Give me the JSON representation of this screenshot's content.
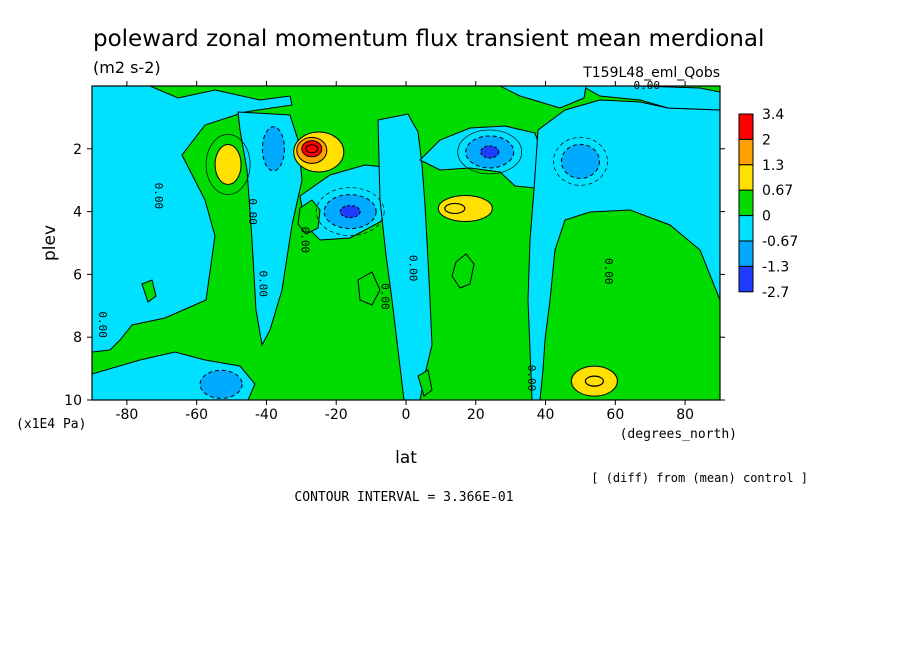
{
  "chart_data": {
    "type": "heatmap",
    "title": "poleward zonal momentum flux transient mean merdional",
    "units": "(m2 s-2)",
    "run_label": "T159L48_eml_Qobs",
    "xlabel": "lat",
    "x_units": "(degrees_north)",
    "ylabel": "plev",
    "y_units": "(x1E4 Pa)",
    "xlim": [
      -90,
      90
    ],
    "ylim": [
      0,
      10
    ],
    "y_reversed": true,
    "x_ticks": [
      -80,
      -60,
      -40,
      -20,
      0,
      20,
      40,
      60,
      80
    ],
    "x_tick_labels": [
      "-80",
      "-60",
      "-40",
      "-20",
      "0",
      "20",
      "40",
      "60",
      "80"
    ],
    "y_ticks": [
      2,
      4,
      6,
      8,
      10
    ],
    "y_tick_labels": [
      "2",
      "4",
      "6",
      "8",
      "10"
    ],
    "contour_interval": "CONTOUR INTERVAL = 3.366E-01",
    "diff_note": "[ (diff) from (mean) control ]",
    "colorbar": {
      "levels": [
        "3.4",
        "2",
        "1.3",
        "0.67",
        "0",
        "-0.67",
        "-1.3",
        "-2.7"
      ],
      "colors": [
        "#ff0000",
        "#ffa000",
        "#ffe000",
        "#00dc00",
        "#00e0ff",
        "#00aaff",
        "#1e3cff"
      ]
    },
    "contour_labels": [
      {
        "text": "0.00",
        "x": 69,
        "y": 0.1
      },
      {
        "text": "0.00",
        "x": -72,
        "y": 3.5
      },
      {
        "text": "0.00",
        "x": -45,
        "y": 4.0
      },
      {
        "text": "0.00",
        "x": -30,
        "y": 4.9
      },
      {
        "text": "0.00",
        "x": -42,
        "y": 6.3
      },
      {
        "text": "0.00",
        "x": 1,
        "y": 5.8
      },
      {
        "text": "0.00",
        "x": -7,
        "y": 6.7
      },
      {
        "text": "0.00",
        "x": -88,
        "y": 7.6
      },
      {
        "text": "0.00",
        "x": 57,
        "y": 5.9
      },
      {
        "text": "0.00",
        "x": 35,
        "y": 9.3
      }
    ],
    "features": [
      {
        "name": "max",
        "x": -26,
        "y": 2.0,
        "value": 3.4
      },
      {
        "name": "max",
        "x": -51,
        "y": 2.5,
        "value": 0.67
      },
      {
        "name": "max",
        "x": 17,
        "y": 3.9,
        "value": 1.3
      },
      {
        "name": "max",
        "x": 54,
        "y": 9.4,
        "value": 1.3
      },
      {
        "name": "min",
        "x": -38,
        "y": 2.0,
        "value": -1.3
      },
      {
        "name": "min",
        "x": -16,
        "y": 4.0,
        "value": -1.3
      },
      {
        "name": "min",
        "x": 24,
        "y": 2.1,
        "value": -1.3
      },
      {
        "name": "min",
        "x": 50,
        "y": 2.4,
        "value": -1.3
      },
      {
        "name": "min",
        "x": -53,
        "y": 9.5,
        "value": -1.3
      }
    ]
  }
}
